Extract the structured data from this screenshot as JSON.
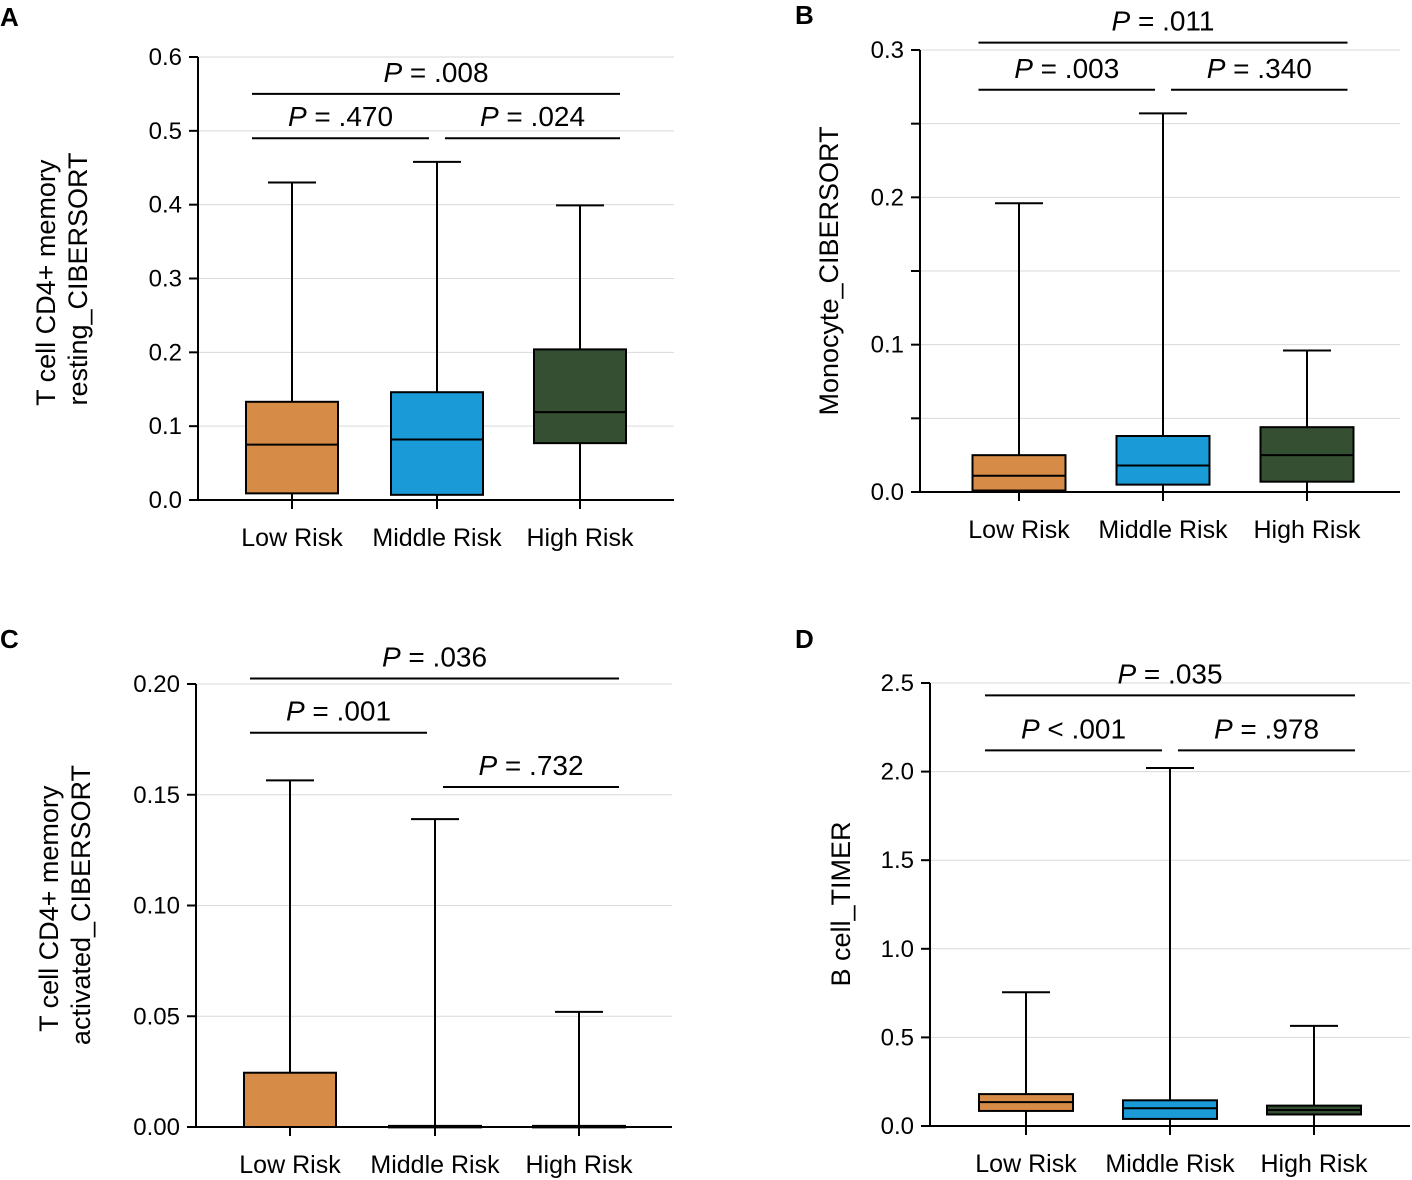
{
  "chart_data": [
    {
      "panel": "A",
      "type": "boxplot",
      "ylabel": [
        "T cell CD4+ memory",
        "resting_CIBERSORT"
      ],
      "categories": [
        "Low Risk",
        "Middle Risk",
        "High Risk"
      ],
      "ylim": [
        0,
        0.6
      ],
      "yticks": [
        "0.0",
        "0.1",
        "0.2",
        "0.3",
        "0.4",
        "0.5",
        "0.6"
      ],
      "grid": true,
      "boxes": [
        {
          "category": "Low Risk",
          "min": 0.0,
          "q1": 0.009,
          "median": 0.075,
          "q3": 0.133,
          "max": 0.43,
          "color": "#d68b47"
        },
        {
          "category": "Middle Risk",
          "min": 0.0,
          "q1": 0.007,
          "median": 0.082,
          "q3": 0.146,
          "max": 0.458,
          "color": "#1a9ad6"
        },
        {
          "category": "High Risk",
          "min": 0.0,
          "q1": 0.077,
          "median": 0.119,
          "q3": 0.204,
          "max": 0.399,
          "color": "#344f32"
        }
      ],
      "comparisons": [
        {
          "label": "P = .470",
          "from": 0,
          "to": 1,
          "y": 0.49
        },
        {
          "label": "P = .024",
          "from": 1,
          "to": 2,
          "y": 0.49
        },
        {
          "label": "P = .008",
          "from": 0,
          "to": 2,
          "y": 0.55
        }
      ]
    },
    {
      "panel": "B",
      "type": "boxplot",
      "ylabel": [
        "Monocyte_CIBERSORT"
      ],
      "categories": [
        "Low Risk",
        "Middle Risk",
        "High Risk"
      ],
      "ylim": [
        0,
        0.3
      ],
      "yticks": [
        "0.0",
        "",
        "0.1",
        "",
        "0.2",
        "",
        "0.3"
      ],
      "grid": true,
      "boxes": [
        {
          "category": "Low Risk",
          "min": 0.0,
          "q1": 0.001,
          "median": 0.011,
          "q3": 0.025,
          "max": 0.196,
          "color": "#d68b47"
        },
        {
          "category": "Middle Risk",
          "min": 0.0,
          "q1": 0.005,
          "median": 0.018,
          "q3": 0.038,
          "max": 0.257,
          "color": "#1a9ad6"
        },
        {
          "category": "High Risk",
          "min": 0.0,
          "q1": 0.007,
          "median": 0.025,
          "q3": 0.044,
          "max": 0.096,
          "color": "#344f32"
        }
      ],
      "comparisons": [
        {
          "label": "P = .003",
          "from": 0,
          "to": 1,
          "y": 0.273
        },
        {
          "label": "P = .340",
          "from": 1,
          "to": 2,
          "y": 0.273
        },
        {
          "label": "P = .011",
          "from": 0,
          "to": 2,
          "y": 0.305
        }
      ]
    },
    {
      "panel": "C",
      "type": "boxplot",
      "ylabel": [
        "T cell CD4+ memory",
        "activated_CIBERSORT"
      ],
      "categories": [
        "Low Risk",
        "Middle Risk",
        "High Risk"
      ],
      "ylim": [
        0,
        0.2
      ],
      "yticks": [
        "0.00",
        "0.05",
        "0.10",
        "0.15",
        "0.20"
      ],
      "grid": true,
      "boxes": [
        {
          "category": "Low Risk",
          "min": 0.0,
          "q1": 0.0,
          "median": 0.0,
          "q3": 0.0245,
          "max": 0.1565,
          "color": "#d68b47"
        },
        {
          "category": "Middle Risk",
          "min": 0.0,
          "q1": 0.0,
          "median": 0.0,
          "q3": 0.0005,
          "max": 0.139,
          "color": "#1a9ad6"
        },
        {
          "category": "High Risk",
          "min": 0.0,
          "q1": 0.0,
          "median": 0.0,
          "q3": 0.0005,
          "max": 0.052,
          "color": "#344f32"
        }
      ],
      "comparisons": [
        {
          "label": "P = .001",
          "from": 0,
          "to": 1,
          "y": 0.178
        },
        {
          "label": "P = .732",
          "from": 1,
          "to": 2,
          "y": 0.1535
        },
        {
          "label": "P = .036",
          "from": 0,
          "to": 2,
          "y": 0.2025
        }
      ]
    },
    {
      "panel": "D",
      "type": "boxplot",
      "ylabel": [
        "B cell_TIMER"
      ],
      "categories": [
        "Low Risk",
        "Middle Risk",
        "High Risk"
      ],
      "ylim": [
        0,
        2.5
      ],
      "yticks": [
        "0.0",
        "0.5",
        "1.0",
        "1.5",
        "2.0",
        "2.5"
      ],
      "grid": true,
      "boxes": [
        {
          "category": "Low Risk",
          "min": 0.0,
          "q1": 0.085,
          "median": 0.135,
          "q3": 0.18,
          "max": 0.755,
          "color": "#d68b47"
        },
        {
          "category": "Middle Risk",
          "min": 0.0,
          "q1": 0.04,
          "median": 0.1,
          "q3": 0.145,
          "max": 2.02,
          "color": "#1a9ad6"
        },
        {
          "category": "High Risk",
          "min": 0.0,
          "q1": 0.065,
          "median": 0.09,
          "q3": 0.115,
          "max": 0.565,
          "color": "#344f32"
        }
      ],
      "comparisons": [
        {
          "label": "P < .001",
          "from": 0,
          "to": 1,
          "y": 2.12
        },
        {
          "label": "P = .978",
          "from": 1,
          "to": 2,
          "y": 2.12
        },
        {
          "label": "P = .035",
          "from": 0,
          "to": 2,
          "y": 2.43
        }
      ]
    }
  ]
}
